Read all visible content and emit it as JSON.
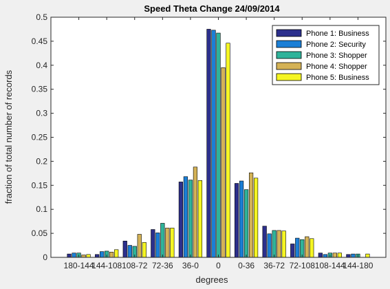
{
  "chart_data": {
    "type": "bar",
    "title": "Speed Theta Change 24/09/2014",
    "xlabel": "degrees",
    "ylabel": "fraction of total number of records",
    "ylim": [
      0,
      0.5
    ],
    "yticks": [
      0,
      0.05,
      0.1,
      0.15,
      0.2,
      0.25,
      0.3,
      0.35,
      0.4,
      0.45,
      0.5
    ],
    "ytick_labels": [
      "0",
      "0.05",
      "0.1",
      "0.15",
      "0.2",
      "0.25",
      "0.3",
      "0.35",
      "0.4",
      "0.45",
      "0.5"
    ],
    "grid": false,
    "legend_position": "top-right",
    "categories": [
      "180-144",
      "144-108",
      "108-72",
      "72-36",
      "36-0",
      "0",
      "0-36",
      "36-72",
      "72-108",
      "108-144",
      "144-180"
    ],
    "series": [
      {
        "name": "Phone 1: Business",
        "color": "#2c2f8c",
        "values": [
          0.007,
          0.006,
          0.034,
          0.058,
          0.157,
          0.475,
          0.154,
          0.065,
          0.028,
          0.009,
          0.006
        ]
      },
      {
        "name": "Phone 2: Security",
        "color": "#1b7fd6",
        "values": [
          0.009,
          0.012,
          0.025,
          0.051,
          0.168,
          0.473,
          0.159,
          0.049,
          0.04,
          0.006,
          0.007
        ]
      },
      {
        "name": "Phone 3: Shopper",
        "color": "#2fb39a",
        "values": [
          0.009,
          0.013,
          0.023,
          0.071,
          0.161,
          0.467,
          0.141,
          0.056,
          0.037,
          0.009,
          0.007
        ]
      },
      {
        "name": "Phone 4: Shopper",
        "color": "#d4b256",
        "values": [
          0.005,
          0.011,
          0.048,
          0.061,
          0.188,
          0.395,
          0.176,
          0.056,
          0.043,
          0.009,
          0.0
        ]
      },
      {
        "name": "Phone 5: Business",
        "color": "#f5f522",
        "values": [
          0.006,
          0.016,
          0.031,
          0.061,
          0.16,
          0.446,
          0.165,
          0.055,
          0.039,
          0.009,
          0.007
        ]
      }
    ]
  }
}
